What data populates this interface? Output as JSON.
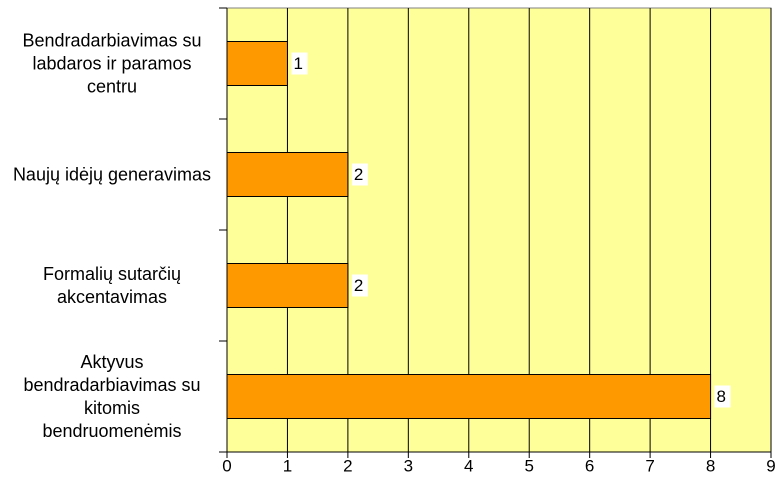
{
  "chart_data": {
    "type": "barh",
    "categories": [
      "Bendradarbiavimas su labdaros ir paramos centru",
      "Naujų idėjų generavimas",
      "Formalių sutarčių akcentavimas",
      "Aktyvus bendradarbiavimas su kitomis bendruomenėmis"
    ],
    "values": [
      1,
      2,
      2,
      8
    ],
    "color": "#ff9900",
    "background": "#ffff99",
    "xlim": [
      0,
      9
    ],
    "xticks": [
      0,
      1,
      2,
      3,
      4,
      5,
      6,
      7,
      8,
      9
    ],
    "grid": true
  }
}
